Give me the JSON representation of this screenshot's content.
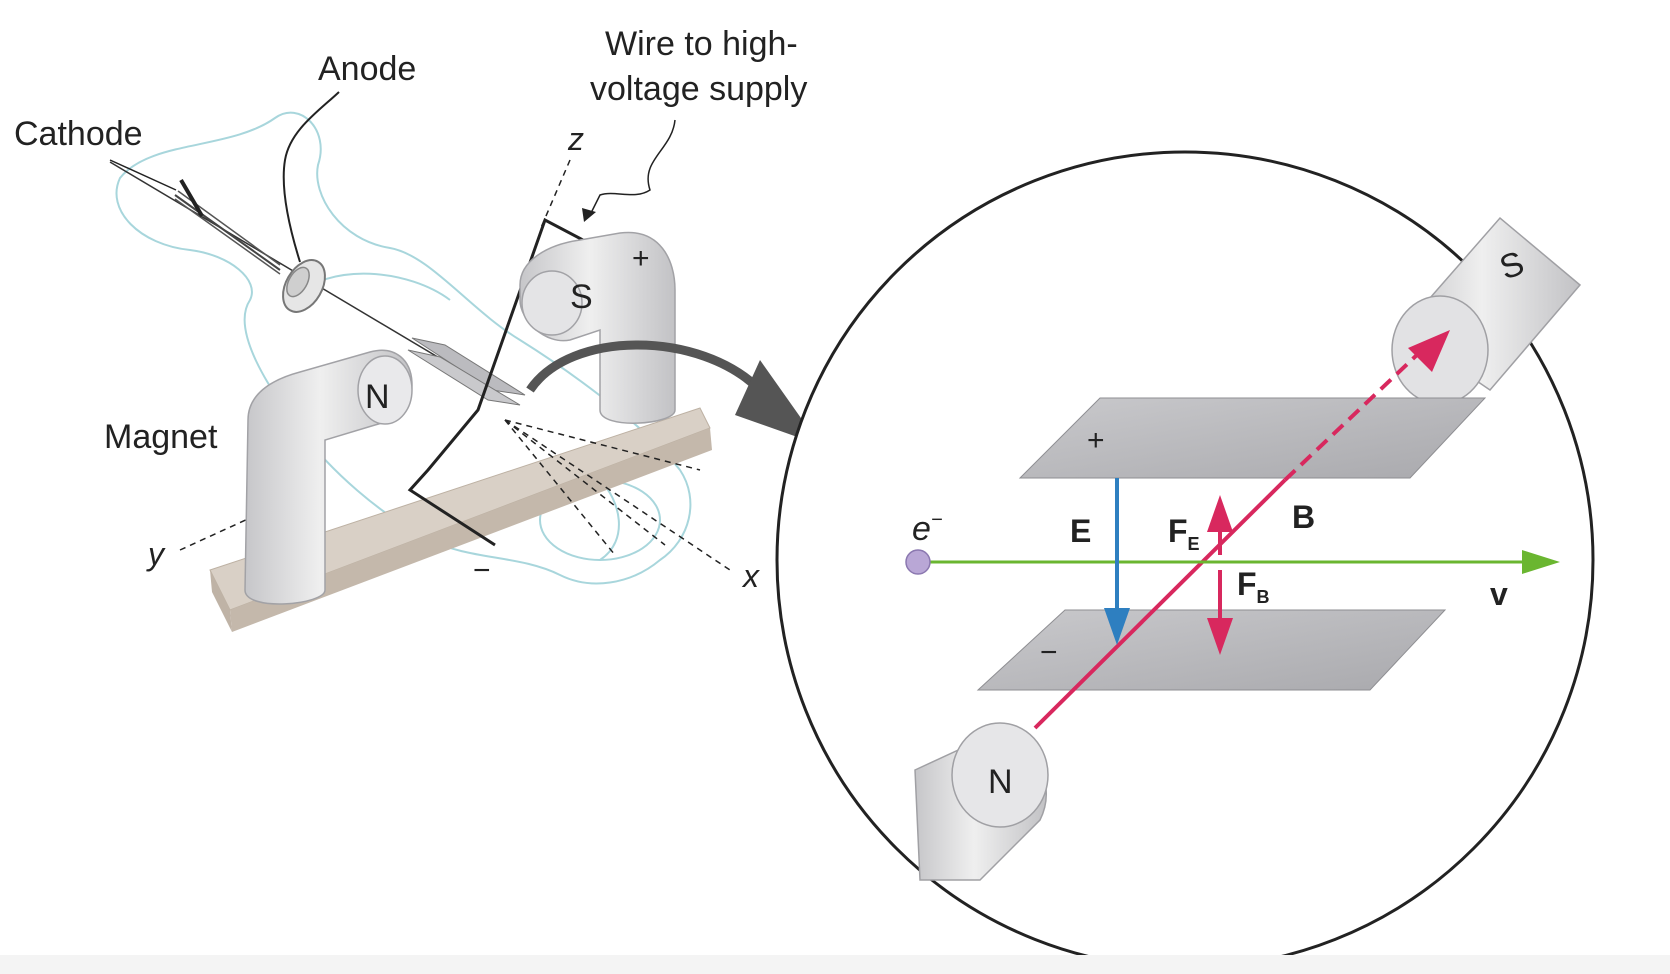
{
  "labels": {
    "anode": "Anode",
    "cathode": "Cathode",
    "wire_line1": "Wire to high-",
    "wire_line2": "voltage supply",
    "magnet": "Magnet",
    "axis_z": "z",
    "axis_y": "y",
    "axis_x": "x",
    "plus": "+",
    "minus": "−",
    "pole_north": "N",
    "pole_south": "S"
  },
  "inset": {
    "electron_base": "e",
    "electron_sup": "−",
    "field_e": "E",
    "force_e_base": "F",
    "force_e_sub": "E",
    "field_b": "B",
    "force_b_base": "F",
    "force_b_sub": "B",
    "velocity": "v",
    "plus": "+",
    "minus": "−",
    "pole_north": "N",
    "pole_south": "S"
  },
  "colors": {
    "e_field": "#2e7fc0",
    "b_field": "#d8285e",
    "velocity": "#6ab630",
    "plate": "#bdbec2",
    "magnet": "#dcdcde",
    "tube": "#9ccfd6",
    "base": "#cfc3b6"
  }
}
